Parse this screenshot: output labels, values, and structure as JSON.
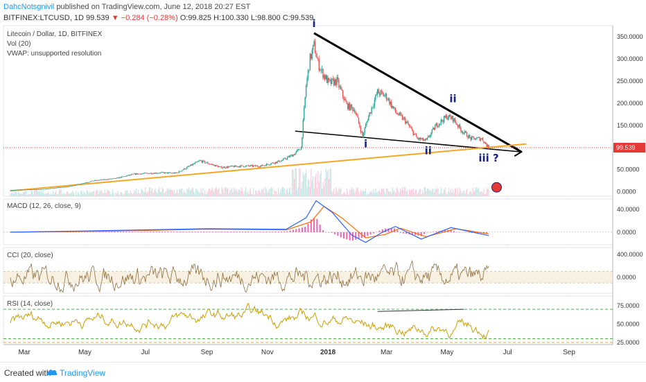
{
  "header": {
    "author": "DahcNotsgnivil",
    "published_text": "published on TradingView.com, June 12, 2018 20:27 EST",
    "symbol": "BITFINEX:LTCUSD, 1D",
    "last": "99.539",
    "change": "−0.284 (−0.28%)",
    "open": "O:99.825",
    "high": "H:100.330",
    "low": "L:98.800",
    "close": "C:99.539"
  },
  "legend": {
    "title": "Litecoin / Dollar, 1D, BITFINEX",
    "vol": "Vol (20)",
    "vwap": "VWAP: unsupported resolution"
  },
  "footer": {
    "created": "Created with",
    "brand": "TradingView",
    "logo_icon": "tradingview-cloud-icon"
  },
  "colors": {
    "up": "#26a69a",
    "down": "#ef5350",
    "trend_orange": "#f5a623",
    "trend_black": "#000000",
    "wave_label": "#1a237e",
    "price_line": "#e53935",
    "macd": "#2962ff",
    "signal": "#ff6d00",
    "hist": "#e91e8c",
    "cci": "#8d6e3f",
    "cci_band": "#f3e6cc",
    "rsi": "#c8a000",
    "rsi_level": "#4caf50"
  },
  "chart_data": [
    {
      "type": "candlestick",
      "title": "Litecoin / Dollar, 1D, BITFINEX",
      "x_tick_labels": [
        "Mar",
        "May",
        "Jul",
        "Sep",
        "Nov",
        "2018",
        "Mar",
        "May",
        "Jul",
        "Sep"
      ],
      "ylim": [
        -10,
        375
      ],
      "y_tick_labels": [
        "350.0000",
        "300.0000",
        "250.0000",
        "200.0000",
        "150.0000",
        "100.0000",
        "50.0000",
        "0.0000"
      ],
      "last_price_label": "99.539",
      "close_anchors": [
        {
          "x": "2017-02-15",
          "close": 4
        },
        {
          "x": "2017-03-20",
          "close": 6
        },
        {
          "x": "2017-04-15",
          "close": 12
        },
        {
          "x": "2017-05-10",
          "close": 25
        },
        {
          "x": "2017-06-01",
          "close": 30
        },
        {
          "x": "2017-06-20",
          "close": 40
        },
        {
          "x": "2017-07-15",
          "close": 43
        },
        {
          "x": "2017-08-01",
          "close": 42
        },
        {
          "x": "2017-08-25",
          "close": 70
        },
        {
          "x": "2017-09-15",
          "close": 55
        },
        {
          "x": "2017-10-05",
          "close": 58
        },
        {
          "x": "2017-10-25",
          "close": 58
        },
        {
          "x": "2017-11-15",
          "close": 70
        },
        {
          "x": "2017-11-28",
          "close": 85
        },
        {
          "x": "2017-12-05",
          "close": 100
        },
        {
          "x": "2017-12-10",
          "close": 240
        },
        {
          "x": "2017-12-14",
          "close": 300
        },
        {
          "x": "2017-12-18",
          "close": 330
        },
        {
          "x": "2017-12-22",
          "close": 290
        },
        {
          "x": "2017-12-26",
          "close": 270
        },
        {
          "x": "2018-01-02",
          "close": 245
        },
        {
          "x": "2018-01-10",
          "close": 250
        },
        {
          "x": "2018-01-20",
          "close": 195
        },
        {
          "x": "2018-01-28",
          "close": 185
        },
        {
          "x": "2018-02-05",
          "close": 125
        },
        {
          "x": "2018-02-10",
          "close": 165
        },
        {
          "x": "2018-02-20",
          "close": 225
        },
        {
          "x": "2018-03-01",
          "close": 215
        },
        {
          "x": "2018-03-10",
          "close": 180
        },
        {
          "x": "2018-03-20",
          "close": 160
        },
        {
          "x": "2018-04-01",
          "close": 120
        },
        {
          "x": "2018-04-10",
          "close": 115
        },
        {
          "x": "2018-04-20",
          "close": 150
        },
        {
          "x": "2018-05-01",
          "close": 170
        },
        {
          "x": "2018-05-07",
          "close": 165
        },
        {
          "x": "2018-05-15",
          "close": 140
        },
        {
          "x": "2018-05-25",
          "close": 120
        },
        {
          "x": "2018-06-05",
          "close": 120
        },
        {
          "x": "2018-06-12",
          "close": 99.5
        }
      ],
      "volume_series": "Vol (20)",
      "annotations": [
        {
          "label": "i",
          "x": "2017-12-18",
          "y": 372
        },
        {
          "label": "i",
          "x": "2018-02-08",
          "y": 100
        },
        {
          "label": "ii",
          "x": "2018-04-12",
          "y": 85
        },
        {
          "label": "ii",
          "x": "2018-05-07",
          "y": 202
        },
        {
          "label": "iii ?",
          "x": "2018-06-12",
          "y": 68
        }
      ],
      "trendlines": [
        {
          "color": "black",
          "from": {
            "x": "2017-12-18",
            "y": 358
          },
          "to": {
            "x": "2018-07-15",
            "y": 90
          }
        },
        {
          "color": "black",
          "from": {
            "x": "2017-11-29",
            "y": 137
          },
          "to": {
            "x": "2018-07-15",
            "y": 90
          }
        },
        {
          "color": "orange",
          "from": {
            "x": "2017-02-15",
            "y": 2
          },
          "to": {
            "x": "2018-07-20",
            "y": 108
          }
        }
      ]
    },
    {
      "type": "line",
      "title": "MACD (12, 26, close, 9)",
      "y_tick_labels": [
        "40.0000",
        "0.0000"
      ],
      "ylim": [
        -22,
        58
      ],
      "series": [
        {
          "name": "MACD",
          "points": [
            [
              "2017-02-15",
              0
            ],
            [
              "2017-06-01",
              3
            ],
            [
              "2017-09-01",
              6
            ],
            [
              "2017-11-20",
              5
            ],
            [
              "2017-12-10",
              25
            ],
            [
              "2017-12-20",
              55
            ],
            [
              "2018-01-05",
              35
            ],
            [
              "2018-01-25",
              -5
            ],
            [
              "2018-02-08",
              -18
            ],
            [
              "2018-02-25",
              0
            ],
            [
              "2018-03-10",
              10
            ],
            [
              "2018-04-05",
              -12
            ],
            [
              "2018-05-05",
              8
            ],
            [
              "2018-06-12",
              -6
            ]
          ]
        },
        {
          "name": "Signal",
          "points": [
            [
              "2017-02-15",
              0
            ],
            [
              "2017-06-01",
              2
            ],
            [
              "2017-09-01",
              5
            ],
            [
              "2017-11-20",
              4
            ],
            [
              "2017-12-15",
              18
            ],
            [
              "2017-12-28",
              45
            ],
            [
              "2018-01-15",
              25
            ],
            [
              "2018-02-08",
              -10
            ],
            [
              "2018-02-28",
              -4
            ],
            [
              "2018-03-15",
              7
            ],
            [
              "2018-04-10",
              -8
            ],
            [
              "2018-05-10",
              6
            ],
            [
              "2018-06-12",
              -3
            ]
          ]
        }
      ]
    },
    {
      "type": "line",
      "title": "CCI (20, close)",
      "y_tick_labels": [
        "400.0000",
        "0.0000"
      ],
      "ylim": [
        -280,
        520
      ],
      "band": [
        -100,
        100
      ]
    },
    {
      "type": "line",
      "title": "RSI (14, close)",
      "y_tick_labels": [
        "75.0000",
        "50.0000",
        "25.0000"
      ],
      "ylim": [
        22,
        88
      ],
      "levels": [
        70,
        30
      ]
    }
  ]
}
